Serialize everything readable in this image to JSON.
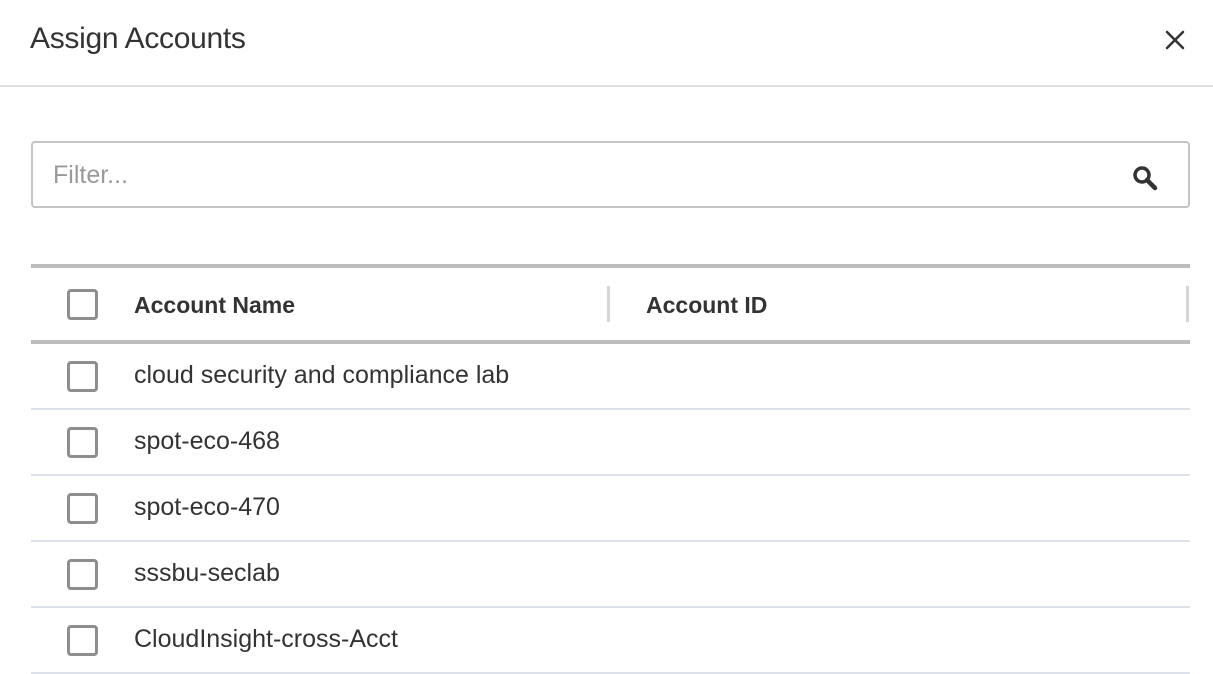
{
  "dialog": {
    "title": "Assign Accounts",
    "close_icon": "close-icon"
  },
  "filter": {
    "placeholder": "Filter...",
    "value": "",
    "icon": "search-icon"
  },
  "table": {
    "columns": [
      "Account Name",
      "Account ID"
    ],
    "rows": [
      {
        "name": "cloud security and compliance lab",
        "id": "",
        "checked": false
      },
      {
        "name": "spot-eco-468",
        "id": "",
        "checked": false
      },
      {
        "name": "spot-eco-470",
        "id": "",
        "checked": false
      },
      {
        "name": "sssbu-seclab",
        "id": "",
        "checked": false
      },
      {
        "name": "CloudInsight-cross-Acct",
        "id": "",
        "checked": false
      }
    ]
  }
}
